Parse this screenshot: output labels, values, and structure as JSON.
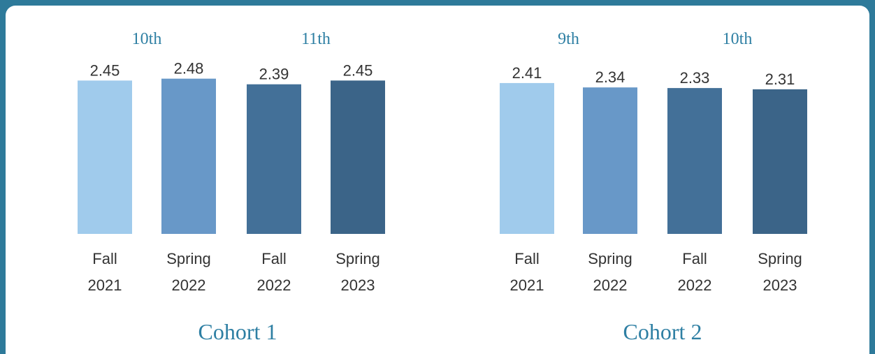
{
  "chart_data": [
    {
      "type": "bar",
      "title": "Cohort 1",
      "groups": [
        "10th",
        "11th"
      ],
      "categories": [
        "Fall 2021",
        "Spring 2022",
        "Fall 2022",
        "Spring 2023"
      ],
      "values": [
        2.45,
        2.48,
        2.39,
        2.45
      ],
      "colors": [
        "#a0cbec",
        "#6898c8",
        "#437098",
        "#3b6488"
      ],
      "ylim": [
        0,
        2.9
      ]
    },
    {
      "type": "bar",
      "title": "Cohort 2",
      "groups": [
        "9th",
        "10th"
      ],
      "categories": [
        "Fall 2021",
        "Spring 2022",
        "Fall 2022",
        "Spring 2023"
      ],
      "values": [
        2.41,
        2.34,
        2.33,
        2.31
      ],
      "colors": [
        "#a0cbec",
        "#6898c8",
        "#437098",
        "#3b6488"
      ],
      "ylim": [
        0,
        2.9
      ]
    }
  ]
}
